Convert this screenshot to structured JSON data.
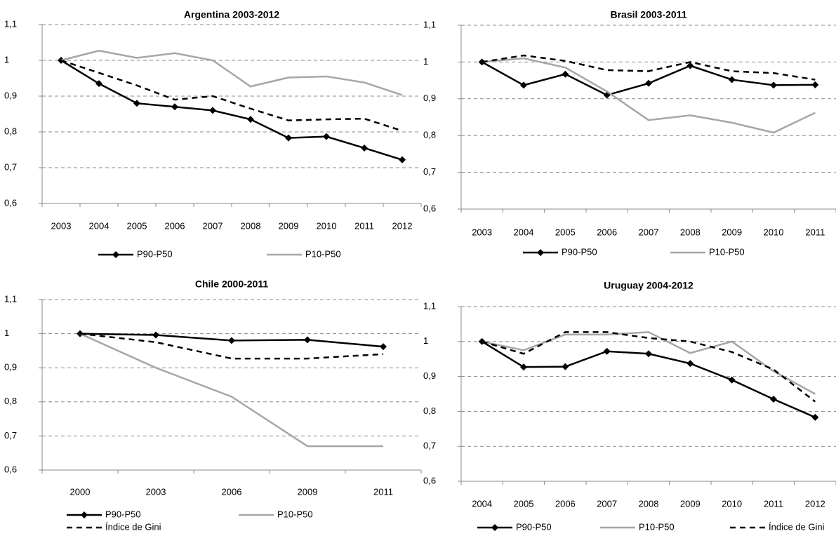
{
  "chart_data": [
    {
      "type": "line",
      "title": "Argentina  2003-2012",
      "categories": [
        "2003",
        "2004",
        "2005",
        "2006",
        "2007",
        "2008",
        "2009",
        "2010",
        "2011",
        "2012"
      ],
      "ylim": [
        0.6,
        1.1
      ],
      "yticks": [
        {
          "value": 0.6,
          "label": "0,6"
        },
        {
          "value": 0.7,
          "label": "0,7"
        },
        {
          "value": 0.8,
          "label": "0,8"
        },
        {
          "value": 0.9,
          "label": "0,9"
        },
        1,
        {
          "value": 1.1,
          "label": "1,1"
        }
      ],
      "grid": true,
      "series": [
        {
          "name": "P90-P50",
          "color": "#000000",
          "marker": "diamond",
          "dashed": false,
          "values": [
            1.0,
            0.935,
            0.88,
            0.87,
            0.86,
            0.835,
            0.783,
            0.787,
            0.755,
            0.722
          ]
        },
        {
          "name": "P10-P50",
          "color": "#a6a6a6",
          "marker": "none",
          "dashed": false,
          "values": [
            1.0,
            1.027,
            1.007,
            1.02,
            1.0,
            0.927,
            0.952,
            0.955,
            0.938,
            0.903
          ]
        },
        {
          "color": "#000000",
          "marker": "none",
          "dashed": true,
          "values": [
            1.0,
            0.965,
            0.93,
            0.89,
            0.9,
            0.865,
            0.832,
            0.835,
            0.837,
            0.803
          ]
        }
      ]
    },
    {
      "type": "line",
      "title": "Brasil  2003-2011",
      "categories": [
        "2003",
        "2004",
        "2005",
        "2006",
        "2007",
        "2008",
        "2009",
        "2010",
        "2011"
      ],
      "ylim": [
        0.6,
        1.1
      ],
      "yticks": [
        {
          "value": 0.6,
          "label": "0,6"
        },
        {
          "value": 0.7,
          "label": "0,7"
        },
        {
          "value": 0.8,
          "label": "0,8"
        },
        {
          "value": 0.9,
          "label": "0,9"
        },
        1,
        {
          "value": 1.1,
          "label": "1,1"
        }
      ],
      "grid": true,
      "series": [
        {
          "name": "P90-P50",
          "color": "#000000",
          "marker": "diamond",
          "dashed": false,
          "values": [
            1.0,
            0.937,
            0.967,
            0.91,
            0.942,
            0.99,
            0.952,
            0.937,
            0.938
          ]
        },
        {
          "name": "P10-P50",
          "color": "#a6a6a6",
          "marker": "none",
          "dashed": false,
          "values": [
            1.0,
            1.01,
            0.985,
            0.92,
            0.842,
            0.855,
            0.835,
            0.808,
            0.862
          ]
        },
        {
          "color": "#000000",
          "marker": "none",
          "dashed": true,
          "values": [
            1.0,
            1.018,
            1.003,
            0.978,
            0.975,
            1.0,
            0.975,
            0.97,
            0.952
          ]
        }
      ]
    },
    {
      "type": "line",
      "title": "Chile  2000-2011",
      "categories": [
        "2000",
        "2003",
        "2006",
        "2009",
        "2011"
      ],
      "ylim": [
        0.6,
        1.1
      ],
      "yticks": [
        {
          "value": 0.6,
          "label": "0,6"
        },
        {
          "value": 0.7,
          "label": "0,7"
        },
        {
          "value": 0.8,
          "label": "0,8"
        },
        {
          "value": 0.9,
          "label": "0,9"
        },
        1,
        {
          "value": 1.1,
          "label": "1,1"
        }
      ],
      "grid": true,
      "series": [
        {
          "name": "P90-P50",
          "color": "#000000",
          "marker": "diamond",
          "dashed": false,
          "values": [
            1.0,
            0.996,
            0.98,
            0.982,
            0.962
          ]
        },
        {
          "name": "P10-P50",
          "color": "#a6a6a6",
          "marker": "none",
          "dashed": false,
          "values": [
            1.0,
            0.9,
            0.815,
            0.67,
            0.67
          ]
        },
        {
          "name": "Índice de Gini",
          "color": "#000000",
          "marker": "none",
          "dashed": true,
          "values": [
            1.0,
            0.975,
            0.927,
            0.927,
            0.94
          ]
        }
      ]
    },
    {
      "type": "line",
      "title": "Uruguay  2004-2012",
      "categories": [
        "2004",
        "2005",
        "2006",
        "2007",
        "2008",
        "2009",
        "2010",
        "2011",
        "2012"
      ],
      "ylim": [
        0.6,
        1.1
      ],
      "yticks": [
        {
          "value": 0.6,
          "label": "0,6"
        },
        {
          "value": 0.7,
          "label": "0,7"
        },
        {
          "value": 0.8,
          "label": "0,8"
        },
        {
          "value": 0.9,
          "label": "0,9"
        },
        1,
        {
          "value": 1.1,
          "label": "1,1"
        }
      ],
      "grid": true,
      "series": [
        {
          "name": "P90-P50",
          "color": "#000000",
          "marker": "diamond",
          "dashed": false,
          "values": [
            1.0,
            0.927,
            0.928,
            0.972,
            0.965,
            0.937,
            0.89,
            0.835,
            0.783
          ]
        },
        {
          "name": "P10-P50",
          "color": "#a6a6a6",
          "marker": "none",
          "dashed": false,
          "values": [
            1.0,
            0.975,
            1.02,
            1.02,
            1.027,
            0.967,
            1.0,
            0.915,
            0.85
          ]
        },
        {
          "name": "Índice de Gini",
          "color": "#000000",
          "marker": "none",
          "dashed": true,
          "values": [
            1.0,
            0.965,
            1.027,
            1.027,
            1.01,
            1.0,
            0.97,
            0.92,
            0.828
          ]
        }
      ]
    }
  ]
}
